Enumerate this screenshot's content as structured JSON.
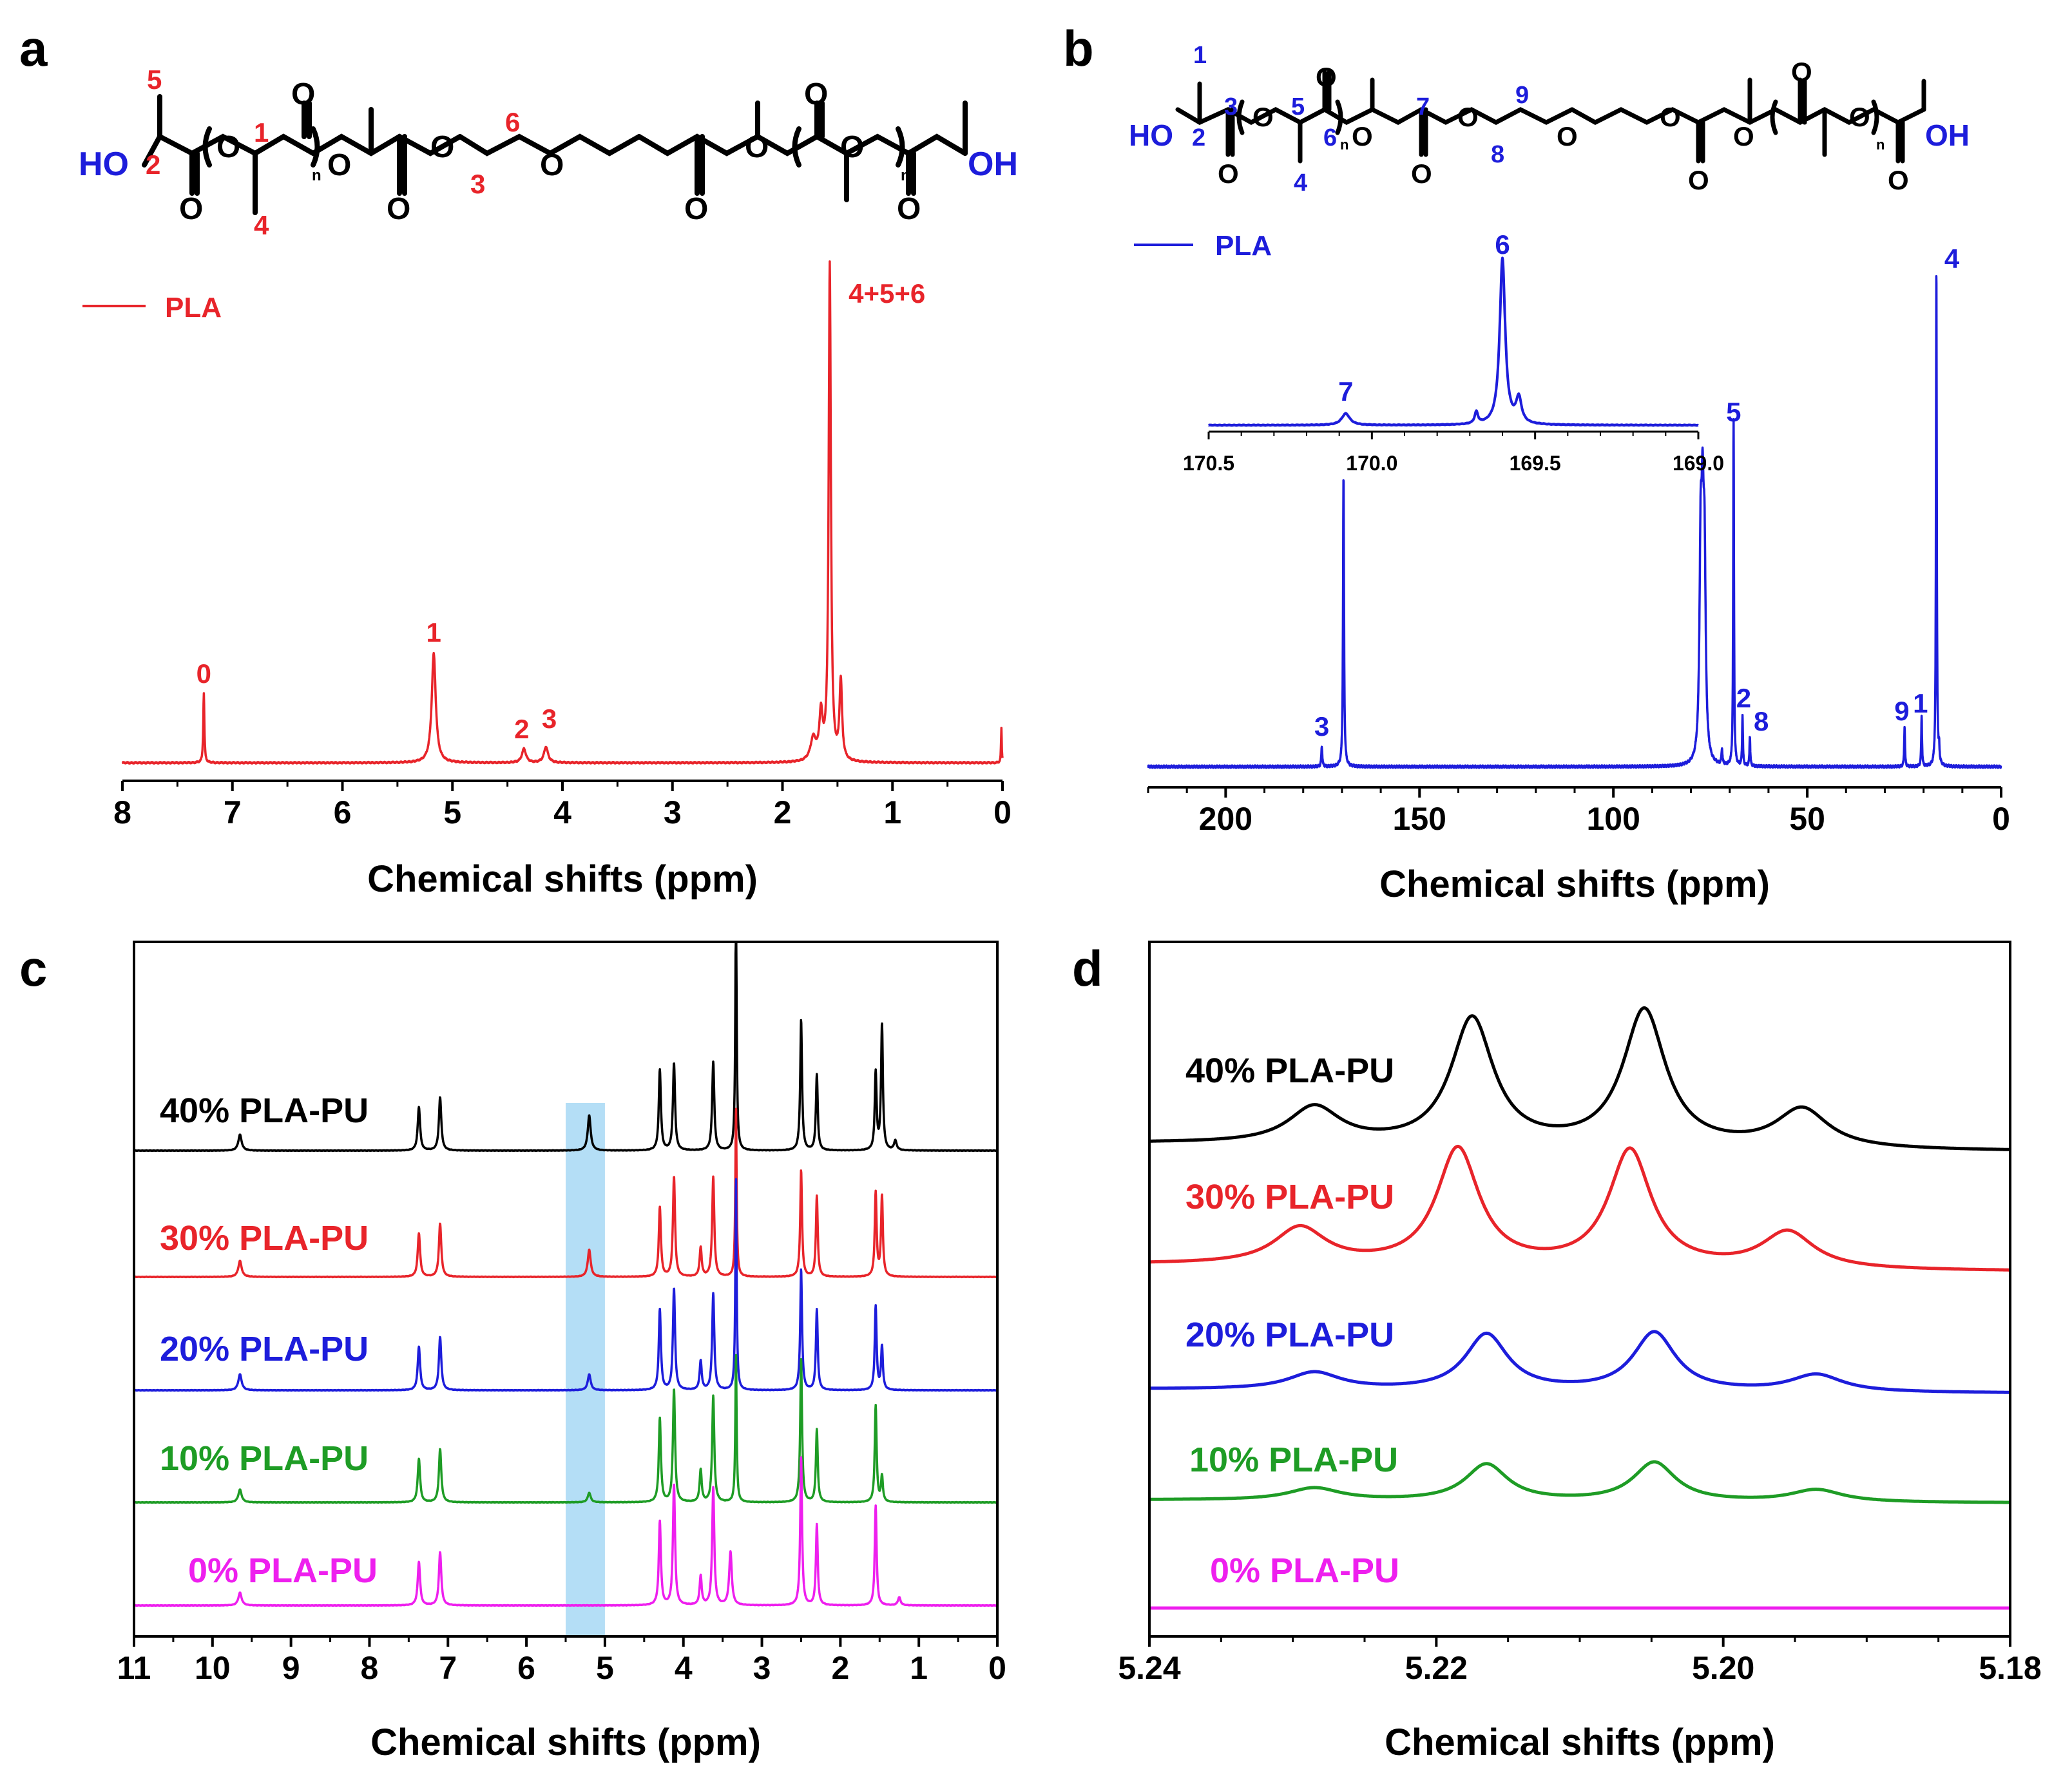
{
  "colors": {
    "red": "#e8242a",
    "blue": "#1d1ddb",
    "black": "#000000",
    "green": "#1e9c25",
    "magenta": "#ee1fee",
    "highlight": "#a7d8f5"
  },
  "panels": {
    "a": "a",
    "b": "b",
    "c": "c",
    "d": "d"
  },
  "chart_data": [
    {
      "id": "a",
      "type": "line",
      "title": "",
      "xlabel": "Chemical shifts (ppm)",
      "ylabel": "",
      "xlim": [
        8,
        0
      ],
      "xticks": [
        "8",
        "7",
        "6",
        "5",
        "4",
        "3",
        "2",
        "1",
        "0"
      ],
      "legend": {
        "label": "PLA",
        "placement": "top-left"
      },
      "series": [
        {
          "name": "PLA",
          "color": "#e8242a",
          "peaks": [
            {
              "x": 7.26,
              "h": 0.14,
              "w": 0.006
            },
            {
              "x": 5.17,
              "h": 0.22,
              "w": 0.022
            },
            {
              "x": 4.35,
              "h": 0.028,
              "w": 0.022
            },
            {
              "x": 4.15,
              "h": 0.032,
              "w": 0.022
            },
            {
              "x": 1.72,
              "h": 0.045,
              "w": 0.03
            },
            {
              "x": 1.65,
              "h": 0.09,
              "w": 0.018
            },
            {
              "x": 1.57,
              "h": 1.0,
              "w": 0.012
            },
            {
              "x": 1.47,
              "h": 0.16,
              "w": 0.014
            },
            {
              "x": 0.01,
              "h": 0.07,
              "w": 0.004
            }
          ]
        }
      ],
      "annotations": [
        {
          "label": "0",
          "x": 7.26
        },
        {
          "label": "1",
          "x": 5.17
        },
        {
          "label": "2",
          "x": 4.37
        },
        {
          "label": "3",
          "x": 4.12
        },
        {
          "label": "4+5+6",
          "x": 1.05
        }
      ],
      "structure_labels": {
        "ho": "HO",
        "oh": "OH",
        "o": "O",
        "n": "n",
        "n1": "1",
        "n2": "2",
        "n3": "3",
        "n4": "4",
        "n5": "5",
        "n6": "6"
      }
    },
    {
      "id": "b",
      "type": "line",
      "title": "",
      "xlabel": "Chemical shifts (ppm)",
      "ylabel": "",
      "xlim": [
        220,
        0
      ],
      "xticks": [
        "200",
        "150",
        "100",
        "50",
        "0"
      ],
      "legend": {
        "label": "PLA",
        "placement": "top-left"
      },
      "series": [
        {
          "name": "PLA",
          "color": "#1d1ddb",
          "peaks": [
            {
              "x": 175.2,
              "h": 0.04,
              "w": 0.15
            },
            {
              "x": 169.6,
              "h": 0.58,
              "w": 0.15
            },
            {
              "x": 77.5,
              "h": 0.38,
              "w": 0.35
            },
            {
              "x": 77.0,
              "h": 0.39,
              "w": 0.35
            },
            {
              "x": 76.5,
              "h": 0.36,
              "w": 0.35
            },
            {
              "x": 72.0,
              "h": 0.03,
              "w": 0.15
            },
            {
              "x": 69.0,
              "h": 0.69,
              "w": 0.12
            },
            {
              "x": 66.7,
              "h": 0.1,
              "w": 0.12
            },
            {
              "x": 64.8,
              "h": 0.06,
              "w": 0.12
            },
            {
              "x": 24.9,
              "h": 0.08,
              "w": 0.12
            },
            {
              "x": 20.5,
              "h": 0.1,
              "w": 0.12
            },
            {
              "x": 16.7,
              "h": 1.0,
              "w": 0.12
            },
            {
              "x": 16.0,
              "h": 0.03,
              "w": 0.12
            }
          ]
        }
      ],
      "annotations": [
        {
          "label": "3",
          "x": 175.2
        },
        {
          "label": "5",
          "x": 69.0
        },
        {
          "label": "2",
          "x": 66.4
        },
        {
          "label": "8",
          "x": 64.2
        },
        {
          "label": "9",
          "x": 25.6
        },
        {
          "label": "1",
          "x": 20.8
        },
        {
          "label": "4",
          "x": 16.7
        }
      ],
      "inset": {
        "xlim": [
          170.5,
          169.0
        ],
        "xticks": [
          "170.5",
          "170.0",
          "169.5",
          "169.0"
        ],
        "peaks": [
          {
            "x": 170.08,
            "h": 0.07,
            "w": 0.015
          },
          {
            "x": 169.68,
            "h": 0.07,
            "w": 0.006
          },
          {
            "x": 169.6,
            "h": 1.0,
            "w": 0.01
          },
          {
            "x": 169.55,
            "h": 0.15,
            "w": 0.01
          }
        ],
        "annotations": [
          {
            "label": "7",
            "x": 170.08
          },
          {
            "label": "6",
            "x": 169.6
          }
        ]
      },
      "structure_labels": {
        "ho": "HO",
        "oh": "OH",
        "o": "O",
        "n": "n",
        "n1": "1",
        "n2": "2",
        "n3": "3",
        "n4": "4",
        "n5": "5",
        "n6": "6",
        "n7": "7",
        "n8": "8",
        "n9": "9"
      }
    },
    {
      "id": "c",
      "type": "line",
      "title": "",
      "xlabel": "Chemical shifts (ppm)",
      "ylabel": "",
      "xlim": [
        11,
        0
      ],
      "xticks": [
        "11",
        "10",
        "9",
        "8",
        "7",
        "6",
        "5",
        "4",
        "3",
        "2",
        "1",
        "0"
      ],
      "highlight_range": [
        5.5,
        5.0
      ],
      "series": [
        {
          "name": "40% PLA-PU",
          "color": "#000000",
          "peaks": [
            {
              "x": 9.65,
              "h": 0.1,
              "w": 0.025
            },
            {
              "x": 7.37,
              "h": 0.27,
              "w": 0.018
            },
            {
              "x": 7.1,
              "h": 0.33,
              "w": 0.018
            },
            {
              "x": 5.2,
              "h": 0.22,
              "w": 0.022
            },
            {
              "x": 4.3,
              "h": 0.5,
              "w": 0.016
            },
            {
              "x": 4.12,
              "h": 0.54,
              "w": 0.016
            },
            {
              "x": 3.62,
              "h": 0.55,
              "w": 0.016
            },
            {
              "x": 3.33,
              "h": 1.6,
              "w": 0.01
            },
            {
              "x": 2.5,
              "h": 0.81,
              "w": 0.014
            },
            {
              "x": 2.3,
              "h": 0.47,
              "w": 0.014
            },
            {
              "x": 1.55,
              "h": 0.48,
              "w": 0.014
            },
            {
              "x": 1.47,
              "h": 0.78,
              "w": 0.014
            },
            {
              "x": 1.3,
              "h": 0.06,
              "w": 0.02
            }
          ]
        },
        {
          "name": "30% PLA-PU",
          "color": "#e8242a",
          "peaks": [
            {
              "x": 9.65,
              "h": 0.1,
              "w": 0.025
            },
            {
              "x": 7.37,
              "h": 0.27,
              "w": 0.018
            },
            {
              "x": 7.1,
              "h": 0.33,
              "w": 0.018
            },
            {
              "x": 5.2,
              "h": 0.17,
              "w": 0.022
            },
            {
              "x": 4.3,
              "h": 0.43,
              "w": 0.016
            },
            {
              "x": 4.12,
              "h": 0.62,
              "w": 0.016
            },
            {
              "x": 3.78,
              "h": 0.18,
              "w": 0.016
            },
            {
              "x": 3.62,
              "h": 0.62,
              "w": 0.016
            },
            {
              "x": 3.33,
              "h": 1.05,
              "w": 0.01
            },
            {
              "x": 2.5,
              "h": 0.66,
              "w": 0.014
            },
            {
              "x": 2.3,
              "h": 0.5,
              "w": 0.014
            },
            {
              "x": 1.55,
              "h": 0.52,
              "w": 0.014
            },
            {
              "x": 1.47,
              "h": 0.5,
              "w": 0.014
            }
          ]
        },
        {
          "name": "20% PLA-PU",
          "color": "#1d1ddb",
          "peaks": [
            {
              "x": 9.65,
              "h": 0.1,
              "w": 0.025
            },
            {
              "x": 7.37,
              "h": 0.27,
              "w": 0.018
            },
            {
              "x": 7.1,
              "h": 0.33,
              "w": 0.018
            },
            {
              "x": 5.2,
              "h": 0.1,
              "w": 0.022
            },
            {
              "x": 4.3,
              "h": 0.5,
              "w": 0.016
            },
            {
              "x": 4.12,
              "h": 0.63,
              "w": 0.016
            },
            {
              "x": 3.78,
              "h": 0.18,
              "w": 0.016
            },
            {
              "x": 3.62,
              "h": 0.6,
              "w": 0.016
            },
            {
              "x": 3.33,
              "h": 1.32,
              "w": 0.01
            },
            {
              "x": 2.5,
              "h": 0.75,
              "w": 0.014
            },
            {
              "x": 2.3,
              "h": 0.5,
              "w": 0.014
            },
            {
              "x": 1.55,
              "h": 0.52,
              "w": 0.014
            },
            {
              "x": 1.47,
              "h": 0.27,
              "w": 0.014
            }
          ]
        },
        {
          "name": "10% PLA-PU",
          "color": "#1e9c25",
          "peaks": [
            {
              "x": 9.65,
              "h": 0.08,
              "w": 0.025
            },
            {
              "x": 7.37,
              "h": 0.27,
              "w": 0.018
            },
            {
              "x": 7.1,
              "h": 0.33,
              "w": 0.018
            },
            {
              "x": 5.2,
              "h": 0.06,
              "w": 0.022
            },
            {
              "x": 4.3,
              "h": 0.52,
              "w": 0.016
            },
            {
              "x": 4.12,
              "h": 0.7,
              "w": 0.016
            },
            {
              "x": 3.78,
              "h": 0.2,
              "w": 0.016
            },
            {
              "x": 3.62,
              "h": 0.66,
              "w": 0.016
            },
            {
              "x": 3.33,
              "h": 0.92,
              "w": 0.01
            },
            {
              "x": 2.5,
              "h": 0.89,
              "w": 0.014
            },
            {
              "x": 2.3,
              "h": 0.45,
              "w": 0.014
            },
            {
              "x": 1.55,
              "h": 0.6,
              "w": 0.014
            },
            {
              "x": 1.47,
              "h": 0.16,
              "w": 0.014
            }
          ]
        },
        {
          "name": "0% PLA-PU",
          "color": "#ee1fee",
          "peaks": [
            {
              "x": 9.65,
              "h": 0.08,
              "w": 0.025
            },
            {
              "x": 7.37,
              "h": 0.27,
              "w": 0.018
            },
            {
              "x": 7.1,
              "h": 0.33,
              "w": 0.018
            },
            {
              "x": 4.3,
              "h": 0.52,
              "w": 0.016
            },
            {
              "x": 4.12,
              "h": 0.75,
              "w": 0.016
            },
            {
              "x": 3.78,
              "h": 0.18,
              "w": 0.016
            },
            {
              "x": 3.62,
              "h": 0.73,
              "w": 0.016
            },
            {
              "x": 3.4,
              "h": 0.33,
              "w": 0.02
            },
            {
              "x": 2.5,
              "h": 0.92,
              "w": 0.014
            },
            {
              "x": 2.3,
              "h": 0.5,
              "w": 0.014
            },
            {
              "x": 1.55,
              "h": 0.62,
              "w": 0.014
            },
            {
              "x": 1.25,
              "h": 0.05,
              "w": 0.02
            }
          ]
        }
      ]
    },
    {
      "id": "d",
      "type": "line",
      "title": "",
      "xlabel": "Chemical shifts (ppm)",
      "ylabel": "",
      "xlim": [
        5.24,
        5.18
      ],
      "xticks": [
        "5.24",
        "5.22",
        "5.20",
        "5.18"
      ],
      "series": [
        {
          "name": "40% PLA-PU",
          "color": "#000000",
          "peaks": [
            {
              "x": 5.2285,
              "h": 0.15,
              "w": 0.0022
            },
            {
              "x": 5.2175,
              "h": 0.52,
              "w": 0.0018
            },
            {
              "x": 5.2055,
              "h": 0.56,
              "w": 0.0018
            },
            {
              "x": 5.1945,
              "h": 0.16,
              "w": 0.0022
            }
          ]
        },
        {
          "name": "30% PLA-PU",
          "color": "#e8242a",
          "peaks": [
            {
              "x": 5.2295,
              "h": 0.15,
              "w": 0.0022
            },
            {
              "x": 5.2185,
              "h": 0.48,
              "w": 0.0018
            },
            {
              "x": 5.2065,
              "h": 0.48,
              "w": 0.0018
            },
            {
              "x": 5.1955,
              "h": 0.15,
              "w": 0.0022
            }
          ]
        },
        {
          "name": "20% PLA-PU",
          "color": "#1d1ddb",
          "peaks": [
            {
              "x": 5.2285,
              "h": 0.07,
              "w": 0.0022
            },
            {
              "x": 5.2165,
              "h": 0.23,
              "w": 0.0018
            },
            {
              "x": 5.2048,
              "h": 0.24,
              "w": 0.0018
            },
            {
              "x": 5.1935,
              "h": 0.07,
              "w": 0.0022
            }
          ]
        },
        {
          "name": "10% PLA-PU",
          "color": "#1e9c25",
          "peaks": [
            {
              "x": 5.2285,
              "h": 0.05,
              "w": 0.0022
            },
            {
              "x": 5.2165,
              "h": 0.15,
              "w": 0.0018
            },
            {
              "x": 5.2048,
              "h": 0.16,
              "w": 0.0018
            },
            {
              "x": 5.1935,
              "h": 0.05,
              "w": 0.0022
            }
          ]
        },
        {
          "name": "0% PLA-PU",
          "color": "#ee1fee",
          "peaks": []
        }
      ]
    }
  ]
}
